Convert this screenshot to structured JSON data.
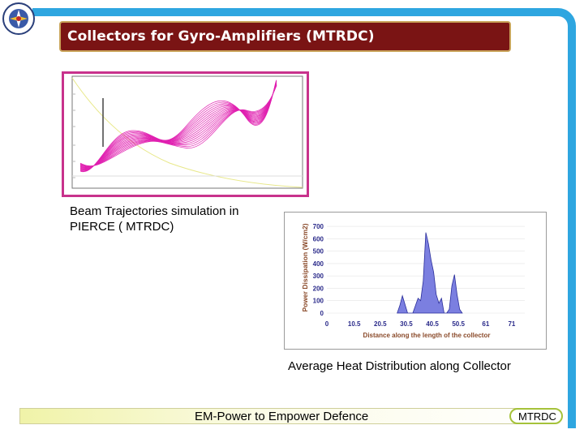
{
  "slide": {
    "title": "Collectors for Gyro-Amplifiers (MTRDC)",
    "colors": {
      "frame": "#2ea6e0",
      "title_bg": "#7a1414",
      "title_border": "#c9a45a",
      "sim_border": "#c8328c",
      "trajectory": "#e020b0",
      "heat_fill": "#7b7fe0"
    }
  },
  "logo": {
    "icon": "emblem-icon"
  },
  "simulation_panel": {
    "caption": "Beam Trajectories simulation in\nPIERCE ( MTRDC)"
  },
  "heat_panel": {
    "caption": "Average Heat Distribution along Collector"
  },
  "footer": {
    "tagline": "EM-Power to Empower Defence",
    "badge": "MTRDC"
  },
  "chart_data": [
    {
      "type": "area",
      "ylabel": "Power Dissipation (W/cm2)",
      "xlabel": "Distance along the length of the collector",
      "x_ticks": [
        "0",
        "10.5",
        "20.5",
        "30.5",
        "40.5",
        "50.5",
        "61",
        "71"
      ],
      "y_ticks": [
        "0",
        "100",
        "200",
        "300",
        "400",
        "500",
        "600",
        "700"
      ],
      "xlim": [
        0,
        76
      ],
      "ylim": [
        0,
        720
      ],
      "x": [
        27,
        28,
        29,
        30,
        31,
        33,
        34,
        35,
        36,
        37,
        38,
        39,
        40,
        41,
        42,
        43,
        44,
        45,
        46,
        47,
        48,
        49,
        50,
        51,
        52
      ],
      "y": [
        0,
        60,
        140,
        70,
        0,
        0,
        60,
        120,
        100,
        260,
        650,
        560,
        430,
        330,
        150,
        80,
        120,
        0,
        0,
        30,
        220,
        310,
        150,
        30,
        0
      ]
    }
  ]
}
